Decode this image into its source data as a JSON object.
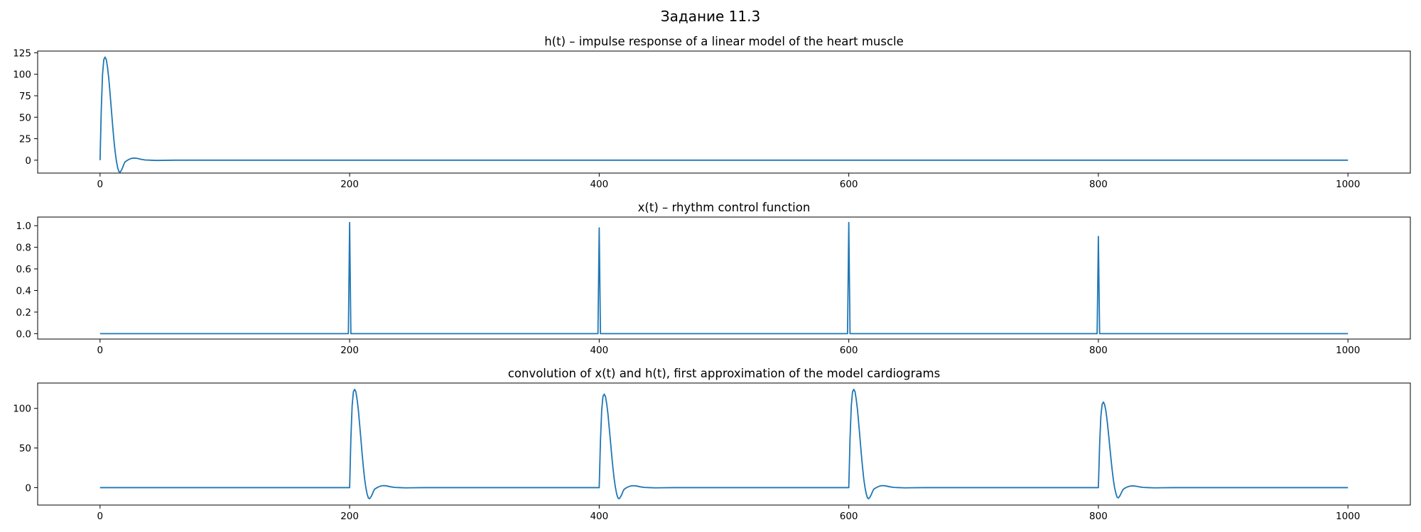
{
  "figure": {
    "title": "Задание 11.3",
    "line_color": "#1f77b4"
  },
  "chart_data": [
    {
      "type": "line",
      "title": "h(t) – impulse response of a linear model of the heart muscle",
      "xlabel": "",
      "ylabel": "",
      "xlim": [
        -50,
        1050
      ],
      "ylim": [
        -15,
        127
      ],
      "xticks": [
        0,
        200,
        400,
        600,
        800,
        1000
      ],
      "yticks": [
        0,
        25,
        50,
        75,
        100,
        125
      ],
      "grid": false,
      "series": [
        {
          "x": [
            0,
            1,
            2,
            3,
            4,
            5,
            6,
            7,
            8,
            9,
            10,
            11,
            12,
            13,
            14,
            15,
            16,
            17,
            18,
            19,
            20,
            22,
            24,
            26,
            28,
            30,
            33,
            36,
            40,
            45,
            50,
            60,
            80,
            1000
          ],
          "y": [
            0,
            60,
            100,
            117,
            120,
            117,
            108,
            95,
            78,
            60,
            42,
            25,
            11,
            0,
            -8,
            -13,
            -14,
            -12,
            -9,
            -5,
            -2,
            0,
            1.5,
            2.3,
            2.4,
            2,
            1,
            0.3,
            0,
            -0.3,
            -0.2,
            0,
            0,
            0
          ]
        }
      ]
    },
    {
      "type": "line",
      "title": "x(t) – rhythm control function",
      "xlabel": "",
      "ylabel": "",
      "xlim": [
        -50,
        1050
      ],
      "ylim": [
        -0.05,
        1.08
      ],
      "xticks": [
        0,
        200,
        400,
        600,
        800,
        1000
      ],
      "yticks": [
        0.0,
        0.2,
        0.4,
        0.6,
        0.8,
        1.0
      ],
      "ytick_labels": [
        "0.0",
        "0.2",
        "0.4",
        "0.6",
        "0.8",
        "1.0"
      ],
      "grid": false,
      "series": [
        {
          "x": [
            0,
            199,
            200,
            201,
            399,
            400,
            401,
            599,
            600,
            601,
            799,
            800,
            801,
            1000
          ],
          "y": [
            0,
            0,
            1.03,
            0,
            0,
            0.98,
            0,
            0,
            1.03,
            0,
            0,
            0.9,
            0,
            0
          ]
        }
      ]
    },
    {
      "type": "line",
      "title": "convolution of x(t) and h(t), first approximation of the model cardiograms",
      "xlabel": "",
      "ylabel": "",
      "xlim": [
        -50,
        1050
      ],
      "ylim": [
        -22,
        132
      ],
      "xticks": [
        0,
        200,
        400,
        600,
        800,
        1000
      ],
      "yticks": [
        0,
        50,
        100
      ],
      "grid": false,
      "series": [
        {
          "x": [
            0,
            200,
            201,
            202,
            203,
            204,
            205,
            206,
            207,
            208,
            209,
            210,
            211,
            212,
            213,
            214,
            215,
            216,
            217,
            218,
            219,
            220,
            222,
            224,
            226,
            228,
            230,
            233,
            236,
            240,
            245,
            250,
            260,
            400,
            401,
            402,
            403,
            404,
            405,
            406,
            407,
            408,
            409,
            410,
            411,
            412,
            413,
            414,
            415,
            416,
            417,
            418,
            419,
            420,
            422,
            424,
            426,
            428,
            430,
            433,
            436,
            440,
            445,
            450,
            460,
            600,
            601,
            602,
            603,
            604,
            605,
            606,
            607,
            608,
            609,
            610,
            611,
            612,
            613,
            614,
            615,
            616,
            617,
            618,
            619,
            620,
            622,
            624,
            626,
            628,
            630,
            633,
            636,
            640,
            645,
            650,
            660,
            800,
            801,
            802,
            803,
            804,
            805,
            806,
            807,
            808,
            809,
            810,
            811,
            812,
            813,
            814,
            815,
            816,
            817,
            818,
            819,
            820,
            822,
            824,
            826,
            828,
            830,
            833,
            836,
            840,
            845,
            850,
            860,
            1000
          ],
          "y": [
            0,
            0,
            62,
            103,
            121,
            124,
            121,
            111,
            98,
            80,
            62,
            43,
            26,
            11,
            0,
            -8,
            -13,
            -14,
            -12,
            -9,
            -5,
            -2,
            0,
            1.5,
            2.4,
            2.5,
            2,
            1,
            0.3,
            0,
            -0.3,
            -0.2,
            0,
            0,
            59,
            98,
            115,
            118,
            115,
            106,
            93,
            76,
            59,
            41,
            25,
            11,
            0,
            -8,
            -13,
            -14,
            -12,
            -9,
            -5,
            -2,
            0,
            1.5,
            2.3,
            2.4,
            2,
            1,
            0.3,
            0,
            -0.3,
            -0.2,
            0,
            0,
            62,
            103,
            121,
            124,
            121,
            111,
            98,
            80,
            62,
            43,
            26,
            11,
            0,
            -8,
            -13,
            -14,
            -12,
            -9,
            -5,
            -2,
            0,
            1.5,
            2.4,
            2.5,
            2,
            1,
            0.3,
            0,
            -0.3,
            -0.2,
            0,
            0,
            54,
            90,
            105,
            108,
            105,
            97,
            85,
            70,
            54,
            38,
            23,
            10,
            0,
            -7,
            -12,
            -13,
            -11,
            -8,
            -4.5,
            -2,
            0,
            1.3,
            2.1,
            2.2,
            1.8,
            0.9,
            0.3,
            0,
            -0.3,
            -0.2,
            0,
            0
          ]
        }
      ]
    }
  ]
}
